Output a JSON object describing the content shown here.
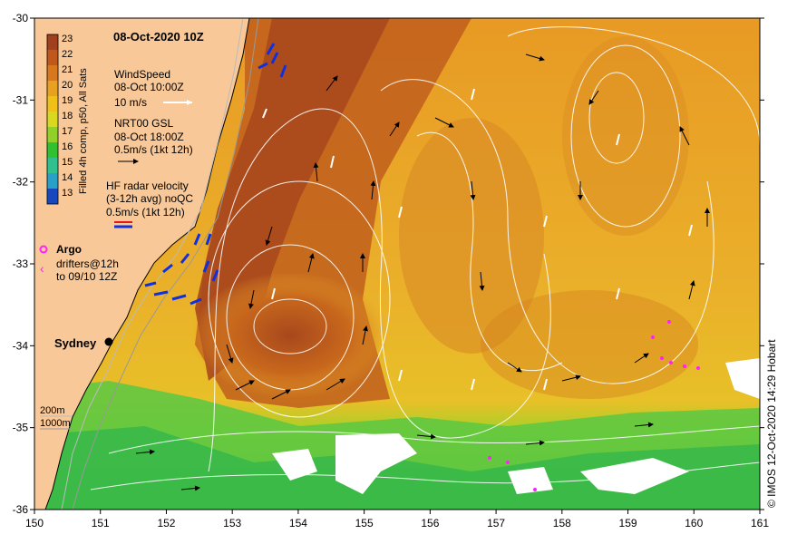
{
  "header": {
    "date_title": "08-Oct-2020 10Z"
  },
  "colorbar": {
    "label": "Filled 4h comp, p50, All Sats",
    "ticks": [
      "23",
      "22",
      "21",
      "20",
      "19",
      "18",
      "17",
      "16",
      "15",
      "14",
      "13"
    ],
    "colors": [
      "#a0401c",
      "#c0581c",
      "#d8781c",
      "#e8a020",
      "#f0c018",
      "#d8d820",
      "#90d028",
      "#30c030",
      "#30c090",
      "#28a0c8",
      "#1848c0",
      "#101880"
    ]
  },
  "legend": {
    "wind_title": "WindSpeed",
    "wind_time": "08-Oct 10:00Z",
    "wind_scale": "10 m/s",
    "gsl_title": "NRT00 GSL",
    "gsl_time": "08-Oct 18:00Z",
    "gsl_scale": "0.5m/s (1kt 12h)",
    "hf_title": "HF radar velocity",
    "hf_sub": "(3-12h avg) noQC",
    "hf_scale": "0.5m/s (1kt 12h)",
    "argo_label": "Argo",
    "drifters_label": "drifters@12h",
    "drifters_period": "to 09/10 12Z"
  },
  "bathymetry": {
    "label_200": "200m",
    "label_1000": "1000m"
  },
  "city": {
    "name": "Sydney"
  },
  "axes": {
    "x_ticks": [
      "150",
      "151",
      "152",
      "153",
      "154",
      "155",
      "156",
      "157",
      "158",
      "159",
      "160",
      "161"
    ],
    "y_ticks": [
      "-30",
      "-31",
      "-32",
      "-33",
      "-34",
      "-35",
      "-36"
    ],
    "xlim": [
      150,
      161
    ],
    "ylim": [
      -36,
      -30
    ]
  },
  "credit": "© IMOS 12-Oct-2020 14:29 Hobart",
  "colors": {
    "land": "#f8c898",
    "warm_core": "#a8481c",
    "mid": "#e8a028",
    "cool": "#48c048",
    "contour": "#ffffff",
    "hf_red": "#e81818",
    "hf_blue": "#1030e0",
    "drifter": "#ff20ff"
  }
}
